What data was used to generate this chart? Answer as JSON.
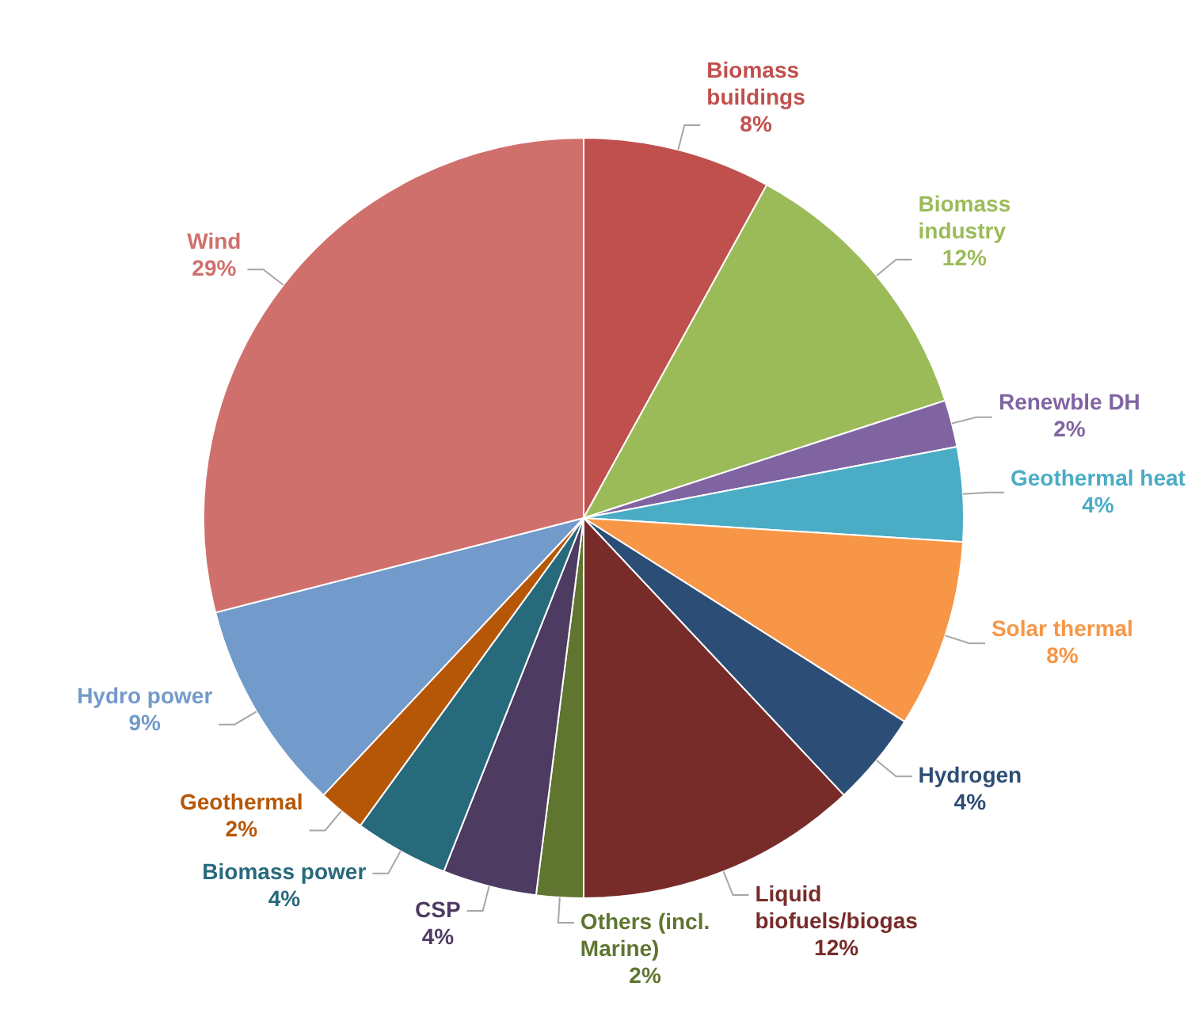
{
  "chart_data": {
    "type": "pie",
    "categories": [
      "Biomass buildings",
      "Biomass industry",
      "Renewble DH",
      "Geothermal heat",
      "Solar thermal",
      "Hydrogen",
      "Liquid biofuels/biogas",
      "Others (incl. Marine)",
      "CSP",
      "Biomass power",
      "Geothermal",
      "Hydro power",
      "Wind"
    ],
    "values": [
      8,
      12,
      2,
      4,
      8,
      4,
      12,
      2,
      4,
      4,
      2,
      9,
      29
    ],
    "value_labels": [
      "8%",
      "12%",
      "2%",
      "4%",
      "8%",
      "4%",
      "12%",
      "2%",
      "4%",
      "4%",
      "2%",
      "9%",
      "29%"
    ],
    "colors": [
      "#c0504d",
      "#9bbb59",
      "#8064a2",
      "#4bacc6",
      "#f79646",
      "#2c4d75",
      "#772c2a",
      "#5f7530",
      "#4d3b62",
      "#276a7c",
      "#b65708",
      "#729aca",
      "#d0706d"
    ],
    "legend": false
  }
}
